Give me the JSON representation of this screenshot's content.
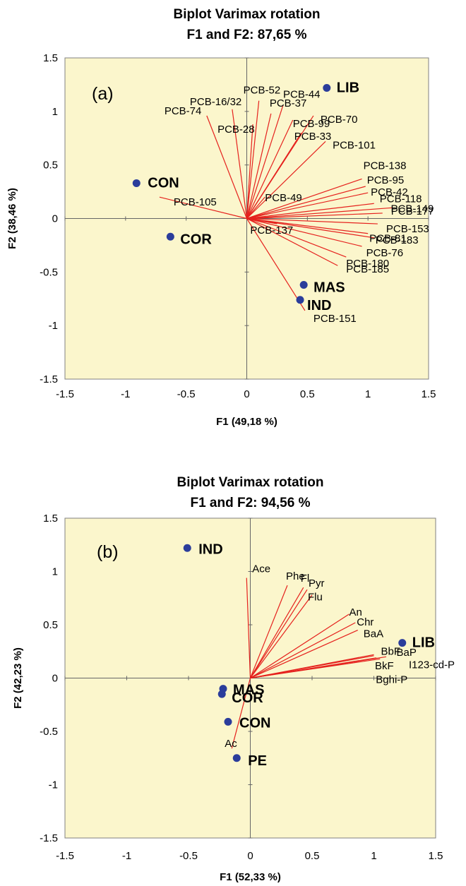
{
  "colors": {
    "plot_background": "#fbf6cc",
    "vector": "#e5211d",
    "point": "#2b3d9b",
    "axis": "#000000",
    "zero_line": "#666666"
  },
  "chart_data": [
    {
      "type": "scatter",
      "panel": "(a)",
      "title": "Biplot Varimax rotation",
      "subtitle": "F1 and F2: 87,65 %",
      "xlabel": "F1 (49,18 %)",
      "ylabel": "F2 (38,46 %)",
      "xlim": [
        -1.5,
        1.5
      ],
      "ylim": [
        -1.5,
        1.5
      ],
      "xticks": [
        -1.5,
        -1,
        -0.5,
        0,
        0.5,
        1,
        1.5
      ],
      "yticks": [
        -1.5,
        -1,
        -0.5,
        0,
        0.5,
        1,
        1.5
      ],
      "xtick_labels": [
        "-1.5",
        "-1",
        "-0.5",
        "0",
        "0.5",
        "1",
        "1.5"
      ],
      "ytick_labels": [
        "-1.5",
        "-1",
        "-0.5",
        "0",
        "0.5",
        "1",
        "1.5"
      ],
      "grid": false,
      "series": [
        {
          "name": "Variables",
          "kind": "vectors",
          "points": [
            {
              "label": "PCB-74",
              "x": -0.33,
              "y": 0.96
            },
            {
              "label": "PCB-16/32",
              "x": -0.12,
              "y": 1.02
            },
            {
              "label": "PCB-52",
              "x": 0.1,
              "y": 1.1
            },
            {
              "label": "PCB-28",
              "x": 0.05,
              "y": 0.88
            },
            {
              "label": "PCB-37",
              "x": 0.2,
              "y": 0.98
            },
            {
              "label": "PCB-44",
              "x": 0.3,
              "y": 1.06
            },
            {
              "label": "PCB-99",
              "x": 0.38,
              "y": 0.92
            },
            {
              "label": "PCB-70",
              "x": 0.55,
              "y": 0.96
            },
            {
              "label": "PCB-33",
              "x": 0.45,
              "y": 0.8
            },
            {
              "label": "PCB-101",
              "x": 0.65,
              "y": 0.72
            },
            {
              "label": "PCB-49",
              "x": 0.15,
              "y": 0.2
            },
            {
              "label": "PCB-105",
              "x": -0.72,
              "y": 0.2
            },
            {
              "label": "PCB-138",
              "x": 0.95,
              "y": 0.37
            },
            {
              "label": "PCB-95",
              "x": 0.98,
              "y": 0.3
            },
            {
              "label": "PCB-42",
              "x": 1.0,
              "y": 0.24
            },
            {
              "label": "PCB-149",
              "x": 1.2,
              "y": 0.1
            },
            {
              "label": "PCB-118",
              "x": 1.05,
              "y": 0.14
            },
            {
              "label": "PCB-177",
              "x": 1.12,
              "y": 0.05
            },
            {
              "label": "PCB-153",
              "x": 1.08,
              "y": -0.05
            },
            {
              "label": "PCB-81",
              "x": 1.0,
              "y": -0.14
            },
            {
              "label": "PCB-183",
              "x": 1.05,
              "y": -0.18
            },
            {
              "label": "PCB-76",
              "x": 0.95,
              "y": -0.26
            },
            {
              "label": "PCB-180",
              "x": 0.82,
              "y": -0.36
            },
            {
              "label": "PCB-185",
              "x": 0.75,
              "y": -0.44
            },
            {
              "label": "PCB-137",
              "x": 0.25,
              "y": -0.05
            },
            {
              "label": "PCB-151",
              "x": 0.48,
              "y": -0.86
            }
          ]
        },
        {
          "name": "Observations",
          "kind": "points",
          "points": [
            {
              "label": "LIB",
              "x": 0.66,
              "y": 1.22
            },
            {
              "label": "CON",
              "x": -0.91,
              "y": 0.33
            },
            {
              "label": "COR",
              "x": -0.63,
              "y": -0.17
            },
            {
              "label": "MAS",
              "x": 0.47,
              "y": -0.62
            },
            {
              "label": "IND",
              "x": 0.44,
              "y": -0.76
            }
          ]
        }
      ]
    },
    {
      "type": "scatter",
      "panel": "(b)",
      "title": "Biplot Varimax rotation",
      "subtitle": "F1 and F2: 94,56 %",
      "xlabel": "F1 (52,33 %)",
      "ylabel": "F2 (42,23 %)",
      "xlim": [
        -1.5,
        1.5
      ],
      "ylim": [
        -1.5,
        1.5
      ],
      "xticks": [
        -1.5,
        -1,
        -0.5,
        0,
        0.5,
        1,
        1.5
      ],
      "yticks": [
        -1.5,
        -1,
        -0.5,
        0,
        0.5,
        1,
        1.5
      ],
      "xtick_labels": [
        "-1.5",
        "-1",
        "-0.5",
        "0",
        "0.5",
        "1",
        "1.5"
      ],
      "ytick_labels": [
        "-1.5",
        "-1",
        "-0.5",
        "0",
        "0.5",
        "1",
        "1.5"
      ],
      "grid": false,
      "series": [
        {
          "name": "Variables",
          "kind": "vectors",
          "points": [
            {
              "label": "Ace",
              "x": -0.03,
              "y": 0.94
            },
            {
              "label": "Phe",
              "x": 0.3,
              "y": 0.87
            },
            {
              "label": "Fl",
              "x": 0.43,
              "y": 0.85
            },
            {
              "label": "Pyr",
              "x": 0.46,
              "y": 0.83
            },
            {
              "label": "Flu",
              "x": 0.5,
              "y": 0.78
            },
            {
              "label": "An",
              "x": 0.8,
              "y": 0.6
            },
            {
              "label": "Chr",
              "x": 0.85,
              "y": 0.52
            },
            {
              "label": "BaA",
              "x": 0.87,
              "y": 0.45
            },
            {
              "label": "BbF",
              "x": 1.0,
              "y": 0.22
            },
            {
              "label": "BaP",
              "x": 1.0,
              "y": 0.21
            },
            {
              "label": "BkF",
              "x": 1.02,
              "y": 0.19
            },
            {
              "label": "I123-cd-P",
              "x": 1.1,
              "y": 0.2
            },
            {
              "label": "Bghi-P",
              "x": 1.05,
              "y": 0.18
            },
            {
              "label": "Ac",
              "x": -0.15,
              "y": -0.66
            }
          ]
        },
        {
          "name": "Observations",
          "kind": "points",
          "points": [
            {
              "label": "IND",
              "x": -0.51,
              "y": 1.22
            },
            {
              "label": "LIB",
              "x": 1.23,
              "y": 0.33
            },
            {
              "label": "MAS",
              "x": -0.22,
              "y": -0.1
            },
            {
              "label": "COR",
              "x": -0.23,
              "y": -0.15
            },
            {
              "label": "CON",
              "x": -0.18,
              "y": -0.41
            },
            {
              "label": "PE",
              "x": -0.11,
              "y": -0.75
            }
          ]
        }
      ]
    }
  ]
}
